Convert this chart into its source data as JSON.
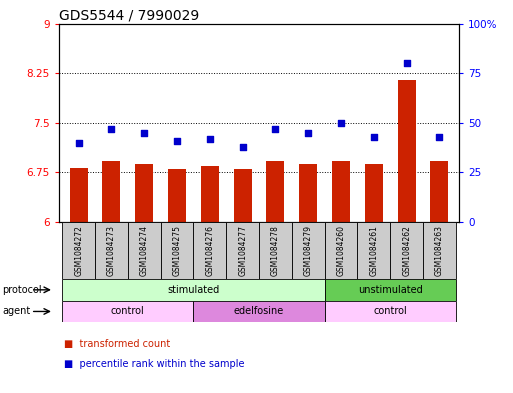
{
  "title": "GDS5544 / 7990029",
  "samples": [
    "GSM1084272",
    "GSM1084273",
    "GSM1084274",
    "GSM1084275",
    "GSM1084276",
    "GSM1084277",
    "GSM1084278",
    "GSM1084279",
    "GSM1084260",
    "GSM1084261",
    "GSM1084262",
    "GSM1084263"
  ],
  "bar_values": [
    6.82,
    6.92,
    6.87,
    6.8,
    6.85,
    6.8,
    6.92,
    6.88,
    6.92,
    6.88,
    8.15,
    6.92
  ],
  "dot_values": [
    40,
    47,
    45,
    41,
    42,
    38,
    47,
    45,
    50,
    43,
    80,
    43
  ],
  "bar_color": "#cc2200",
  "dot_color": "#0000cc",
  "ylim_left": [
    6,
    9
  ],
  "ylim_right": [
    0,
    100
  ],
  "yticks_left": [
    6,
    6.75,
    7.5,
    8.25,
    9
  ],
  "ytick_labels_left": [
    "6",
    "6.75",
    "7.5",
    "8.25",
    "9"
  ],
  "yticks_right": [
    0,
    25,
    50,
    75,
    100
  ],
  "ytick_labels_right": [
    "0",
    "25",
    "50",
    "75",
    "100%"
  ],
  "hlines": [
    6.75,
    7.5,
    8.25
  ],
  "bar_width": 0.55,
  "proto_data": [
    {
      "label": "stimulated",
      "start": 0,
      "end": 7,
      "color": "#ccffcc"
    },
    {
      "label": "unstimulated",
      "start": 8,
      "end": 11,
      "color": "#66cc55"
    }
  ],
  "agent_data": [
    {
      "label": "control",
      "start": 0,
      "end": 3,
      "color": "#ffccff"
    },
    {
      "label": "edelfosine",
      "start": 4,
      "end": 7,
      "color": "#dd88dd"
    },
    {
      "label": "control",
      "start": 8,
      "end": 11,
      "color": "#ffccff"
    }
  ],
  "legend_bar_label": "transformed count",
  "legend_dot_label": "percentile rank within the sample",
  "title_fontsize": 10,
  "tick_fontsize": 7.5,
  "sample_fontsize": 5.5,
  "row_fontsize": 7,
  "cell_color": "#cccccc"
}
